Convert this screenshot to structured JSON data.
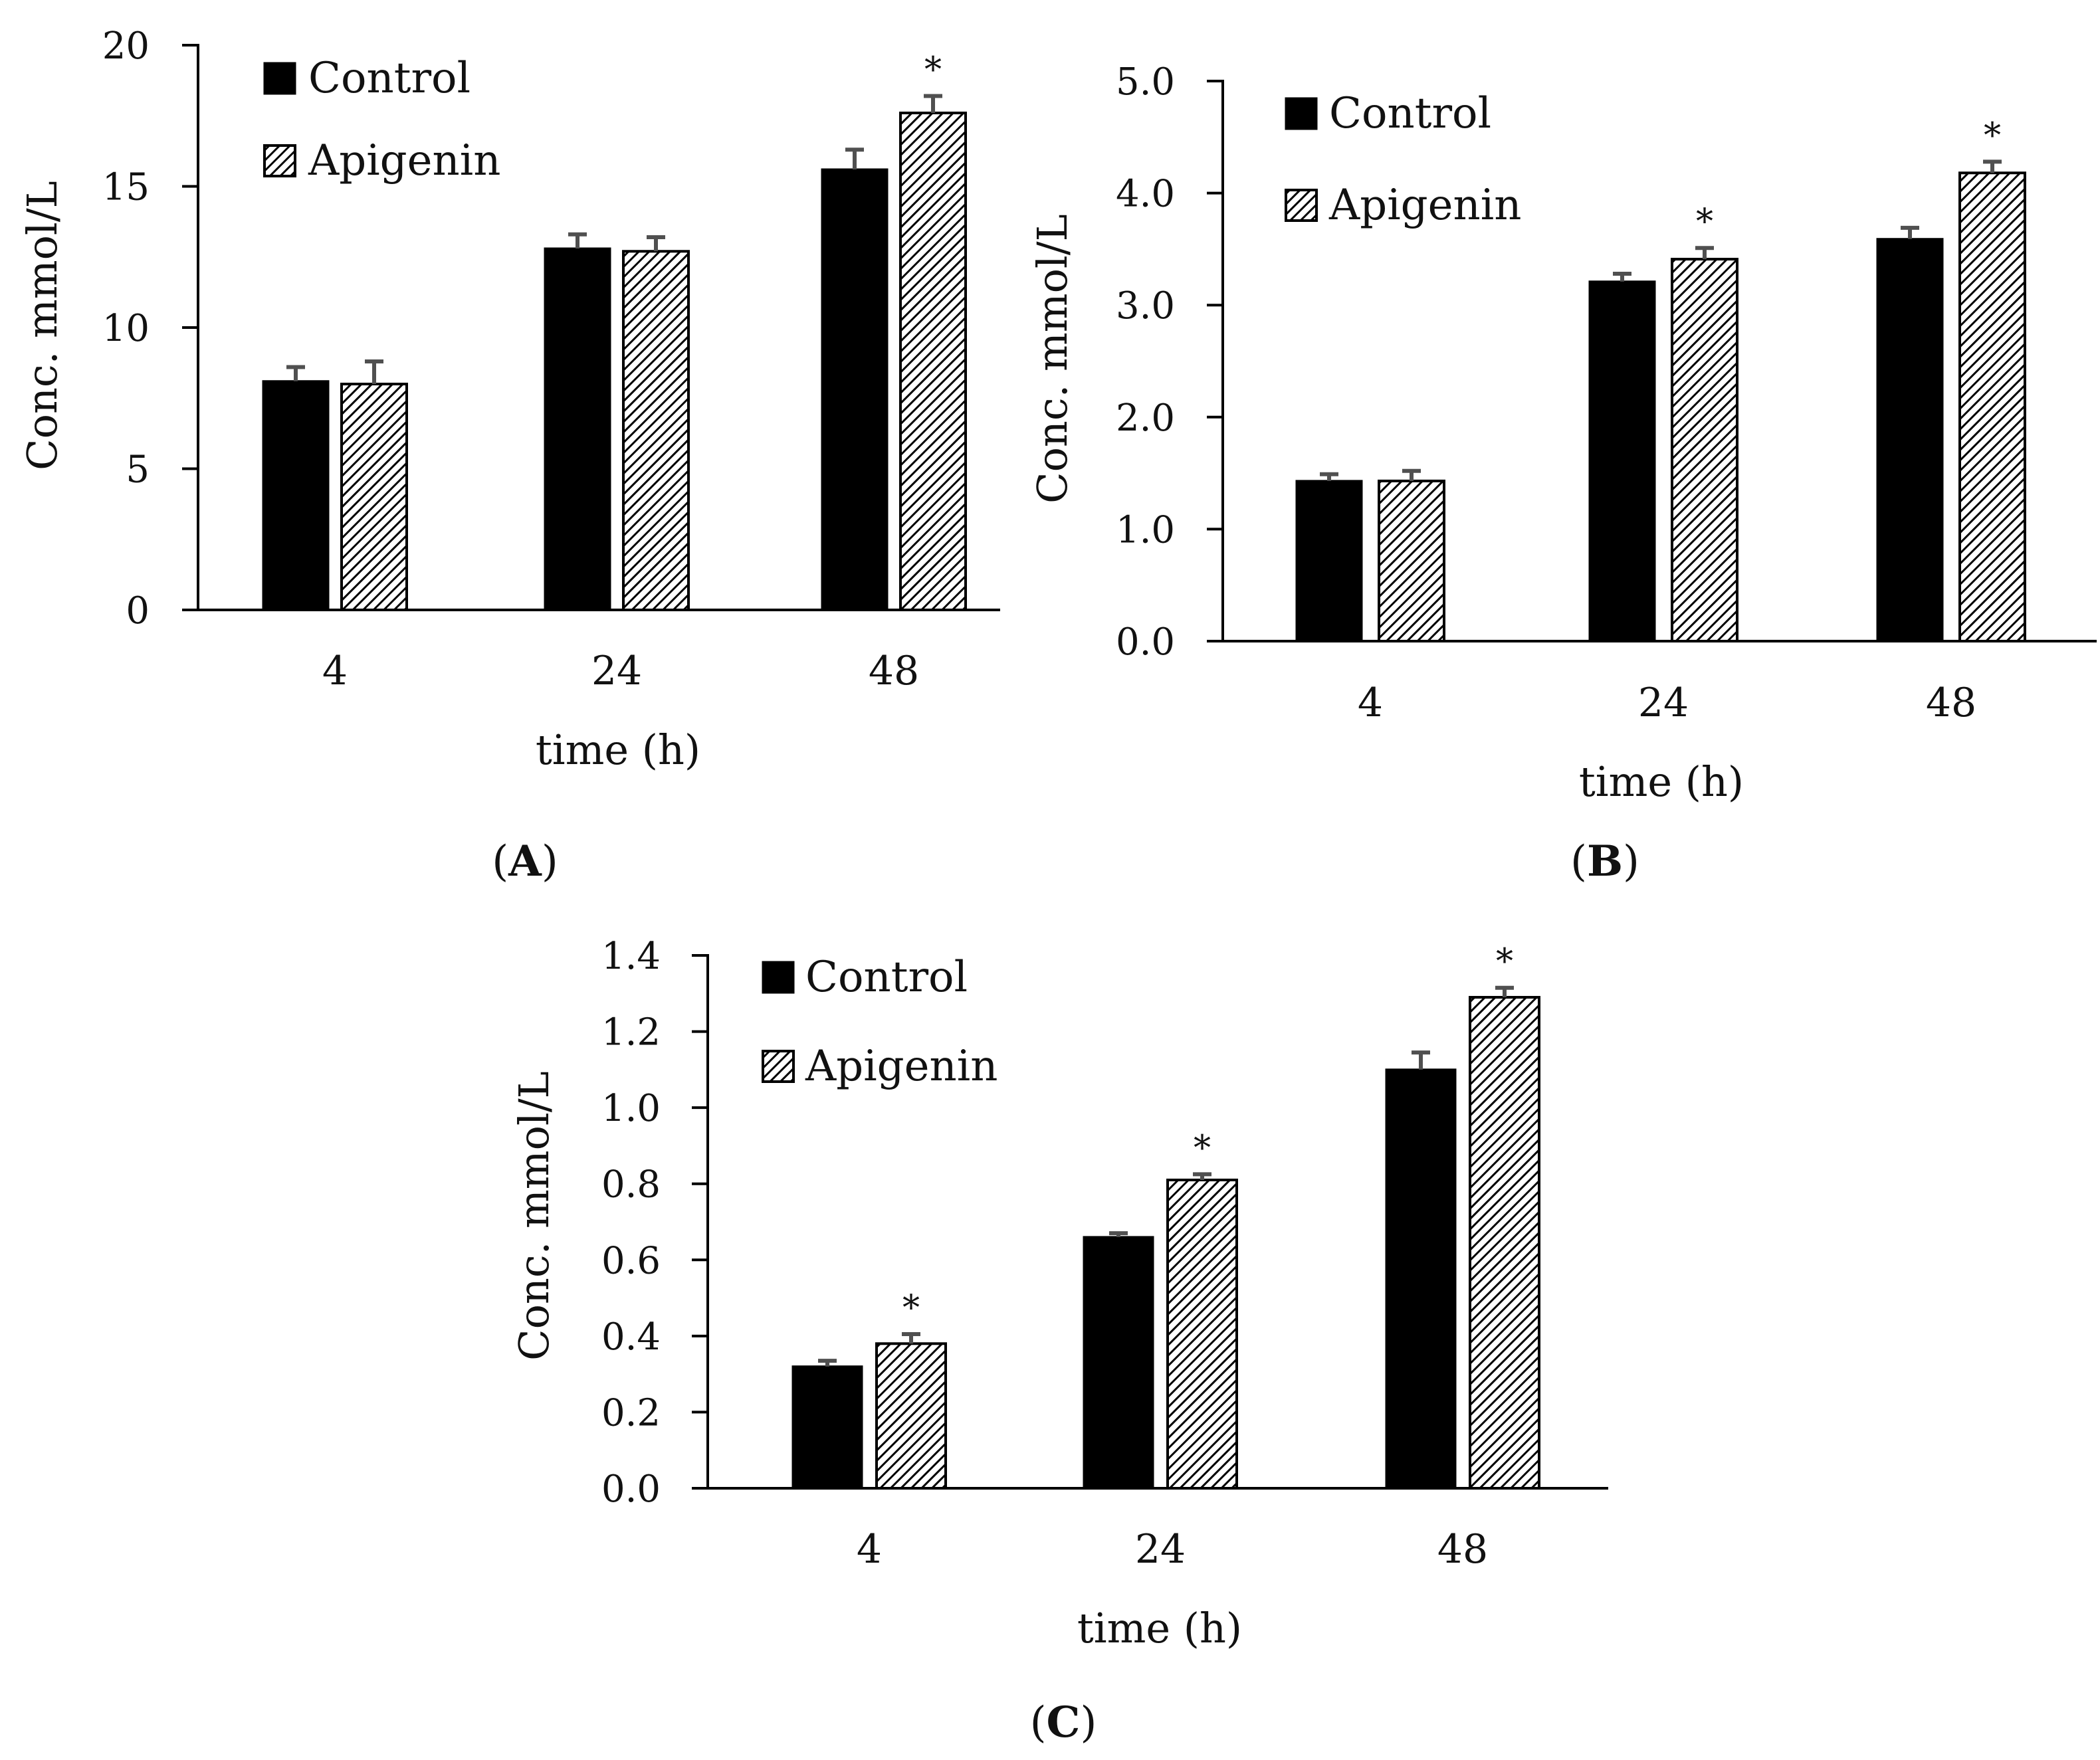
{
  "chart_data": [
    {
      "type": "bar",
      "panel": "A",
      "title": "",
      "xlabel": "time (h)",
      "ylabel": "Conc. mmol/L",
      "categories": [
        "4",
        "24",
        "48"
      ],
      "ylim": [
        0,
        20
      ],
      "yticks": [
        0,
        5,
        10,
        15,
        20
      ],
      "ytick_labels": [
        "0",
        "5",
        "10",
        "15",
        "20"
      ],
      "series": [
        {
          "name": "Control",
          "values": [
            8.1,
            12.8,
            15.6
          ],
          "errors": [
            0.5,
            0.5,
            0.7
          ]
        },
        {
          "name": "Apigenin",
          "values": [
            8.0,
            12.7,
            17.6
          ],
          "errors": [
            0.8,
            0.5,
            0.6
          ]
        }
      ],
      "significance": [
        {
          "category": "48",
          "series": "Apigenin",
          "mark": "*"
        }
      ],
      "legend": "top-left",
      "grid": false,
      "caption": "(A)"
    },
    {
      "type": "bar",
      "panel": "B",
      "title": "",
      "xlabel": "time (h)",
      "ylabel": "Conc. mmol/L",
      "categories": [
        "4",
        "24",
        "48"
      ],
      "ylim": [
        0,
        5
      ],
      "yticks": [
        0,
        1,
        2,
        3,
        4,
        5
      ],
      "ytick_labels": [
        "0.0",
        "1.0",
        "2.0",
        "3.0",
        "4.0",
        "5.0"
      ],
      "series": [
        {
          "name": "Control",
          "values": [
            1.43,
            3.21,
            3.59
          ],
          "errors": [
            0.06,
            0.07,
            0.1
          ]
        },
        {
          "name": "Apigenin",
          "values": [
            1.43,
            3.41,
            4.18
          ],
          "errors": [
            0.09,
            0.1,
            0.1
          ]
        }
      ],
      "significance": [
        {
          "category": "24",
          "series": "Apigenin",
          "mark": "*"
        },
        {
          "category": "48",
          "series": "Apigenin",
          "mark": "*"
        }
      ],
      "legend": "top-left",
      "grid": false,
      "caption": "(B)"
    },
    {
      "type": "bar",
      "panel": "C",
      "title": "",
      "xlabel": "time (h)",
      "ylabel": "Conc. mmol/L",
      "categories": [
        "4",
        "24",
        "48"
      ],
      "ylim": [
        0,
        1.4
      ],
      "yticks": [
        0,
        0.2,
        0.4,
        0.6,
        0.8,
        1.0,
        1.2,
        1.4
      ],
      "ytick_labels": [
        "0.0",
        "0.2",
        "0.4",
        "0.6",
        "0.8",
        "1.0",
        "1.2",
        "1.4"
      ],
      "series": [
        {
          "name": "Control",
          "values": [
            0.32,
            0.66,
            1.1
          ],
          "errors": [
            0.015,
            0.01,
            0.045
          ]
        },
        {
          "name": "Apigenin",
          "values": [
            0.38,
            0.81,
            1.29
          ],
          "errors": [
            0.025,
            0.015,
            0.025
          ]
        }
      ],
      "significance": [
        {
          "category": "4",
          "series": "Apigenin",
          "mark": "*"
        },
        {
          "category": "24",
          "series": "Apigenin",
          "mark": "*"
        },
        {
          "category": "48",
          "series": "Apigenin",
          "mark": "*"
        }
      ],
      "legend": "top-left",
      "grid": false,
      "caption": "(C)"
    }
  ]
}
